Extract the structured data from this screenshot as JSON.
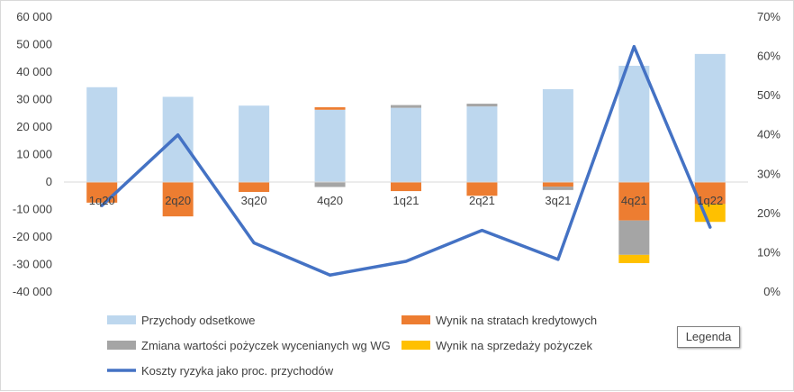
{
  "chart_data": {
    "type": "bar",
    "stacked": true,
    "categories": [
      "1q20",
      "2q20",
      "3q20",
      "4q20",
      "1q21",
      "2q21",
      "3q21",
      "4q21",
      "1q22"
    ],
    "series": [
      {
        "name": "Przychody odsetkowe",
        "color": "#bdd7ee",
        "axis": "left",
        "values": [
          34500,
          31000,
          27800,
          26300,
          27000,
          27500,
          33800,
          42300,
          46600
        ]
      },
      {
        "name": "Wynik na stratach kredytowych",
        "color": "#ed7d31",
        "axis": "left",
        "values": [
          -7500,
          -12500,
          -3600,
          900,
          -3300,
          -5000,
          -1700,
          -14000,
          -8000
        ]
      },
      {
        "name": "Zmiana wartości pożyczek wycenianych wg WG",
        "color": "#a5a5a5",
        "axis": "left",
        "values": [
          0,
          0,
          0,
          -1800,
          1000,
          1000,
          -1200,
          -12500,
          0
        ]
      },
      {
        "name": "Wynik na sprzedaży pożyczek",
        "color": "#ffc000",
        "axis": "left",
        "values": [
          0,
          0,
          0,
          0,
          0,
          0,
          0,
          -3000,
          -6500
        ]
      },
      {
        "name": "Koszty ryzyka jako proc. przychodów",
        "color": "#4472c4",
        "axis": "right",
        "kind": "line",
        "values": [
          0.22,
          0.4,
          0.125,
          0.043,
          0.078,
          0.157,
          0.083,
          0.625,
          0.165
        ]
      }
    ],
    "y_left": {
      "min": -40000,
      "max": 60000,
      "step": 10000,
      "ticks": [
        "-40 000",
        "-30 000",
        "-20 000",
        "-10 000",
        "0",
        "10 000",
        "20 000",
        "30 000",
        "40 000",
        "50 000",
        "60 000"
      ]
    },
    "y_right": {
      "min": 0,
      "max": 0.7,
      "step": 0.1,
      "ticks": [
        "0%",
        "10%",
        "20%",
        "30%",
        "40%",
        "50%",
        "60%",
        "70%"
      ]
    },
    "grid": false,
    "legend": "bottom",
    "legend_button": "Legenda"
  }
}
